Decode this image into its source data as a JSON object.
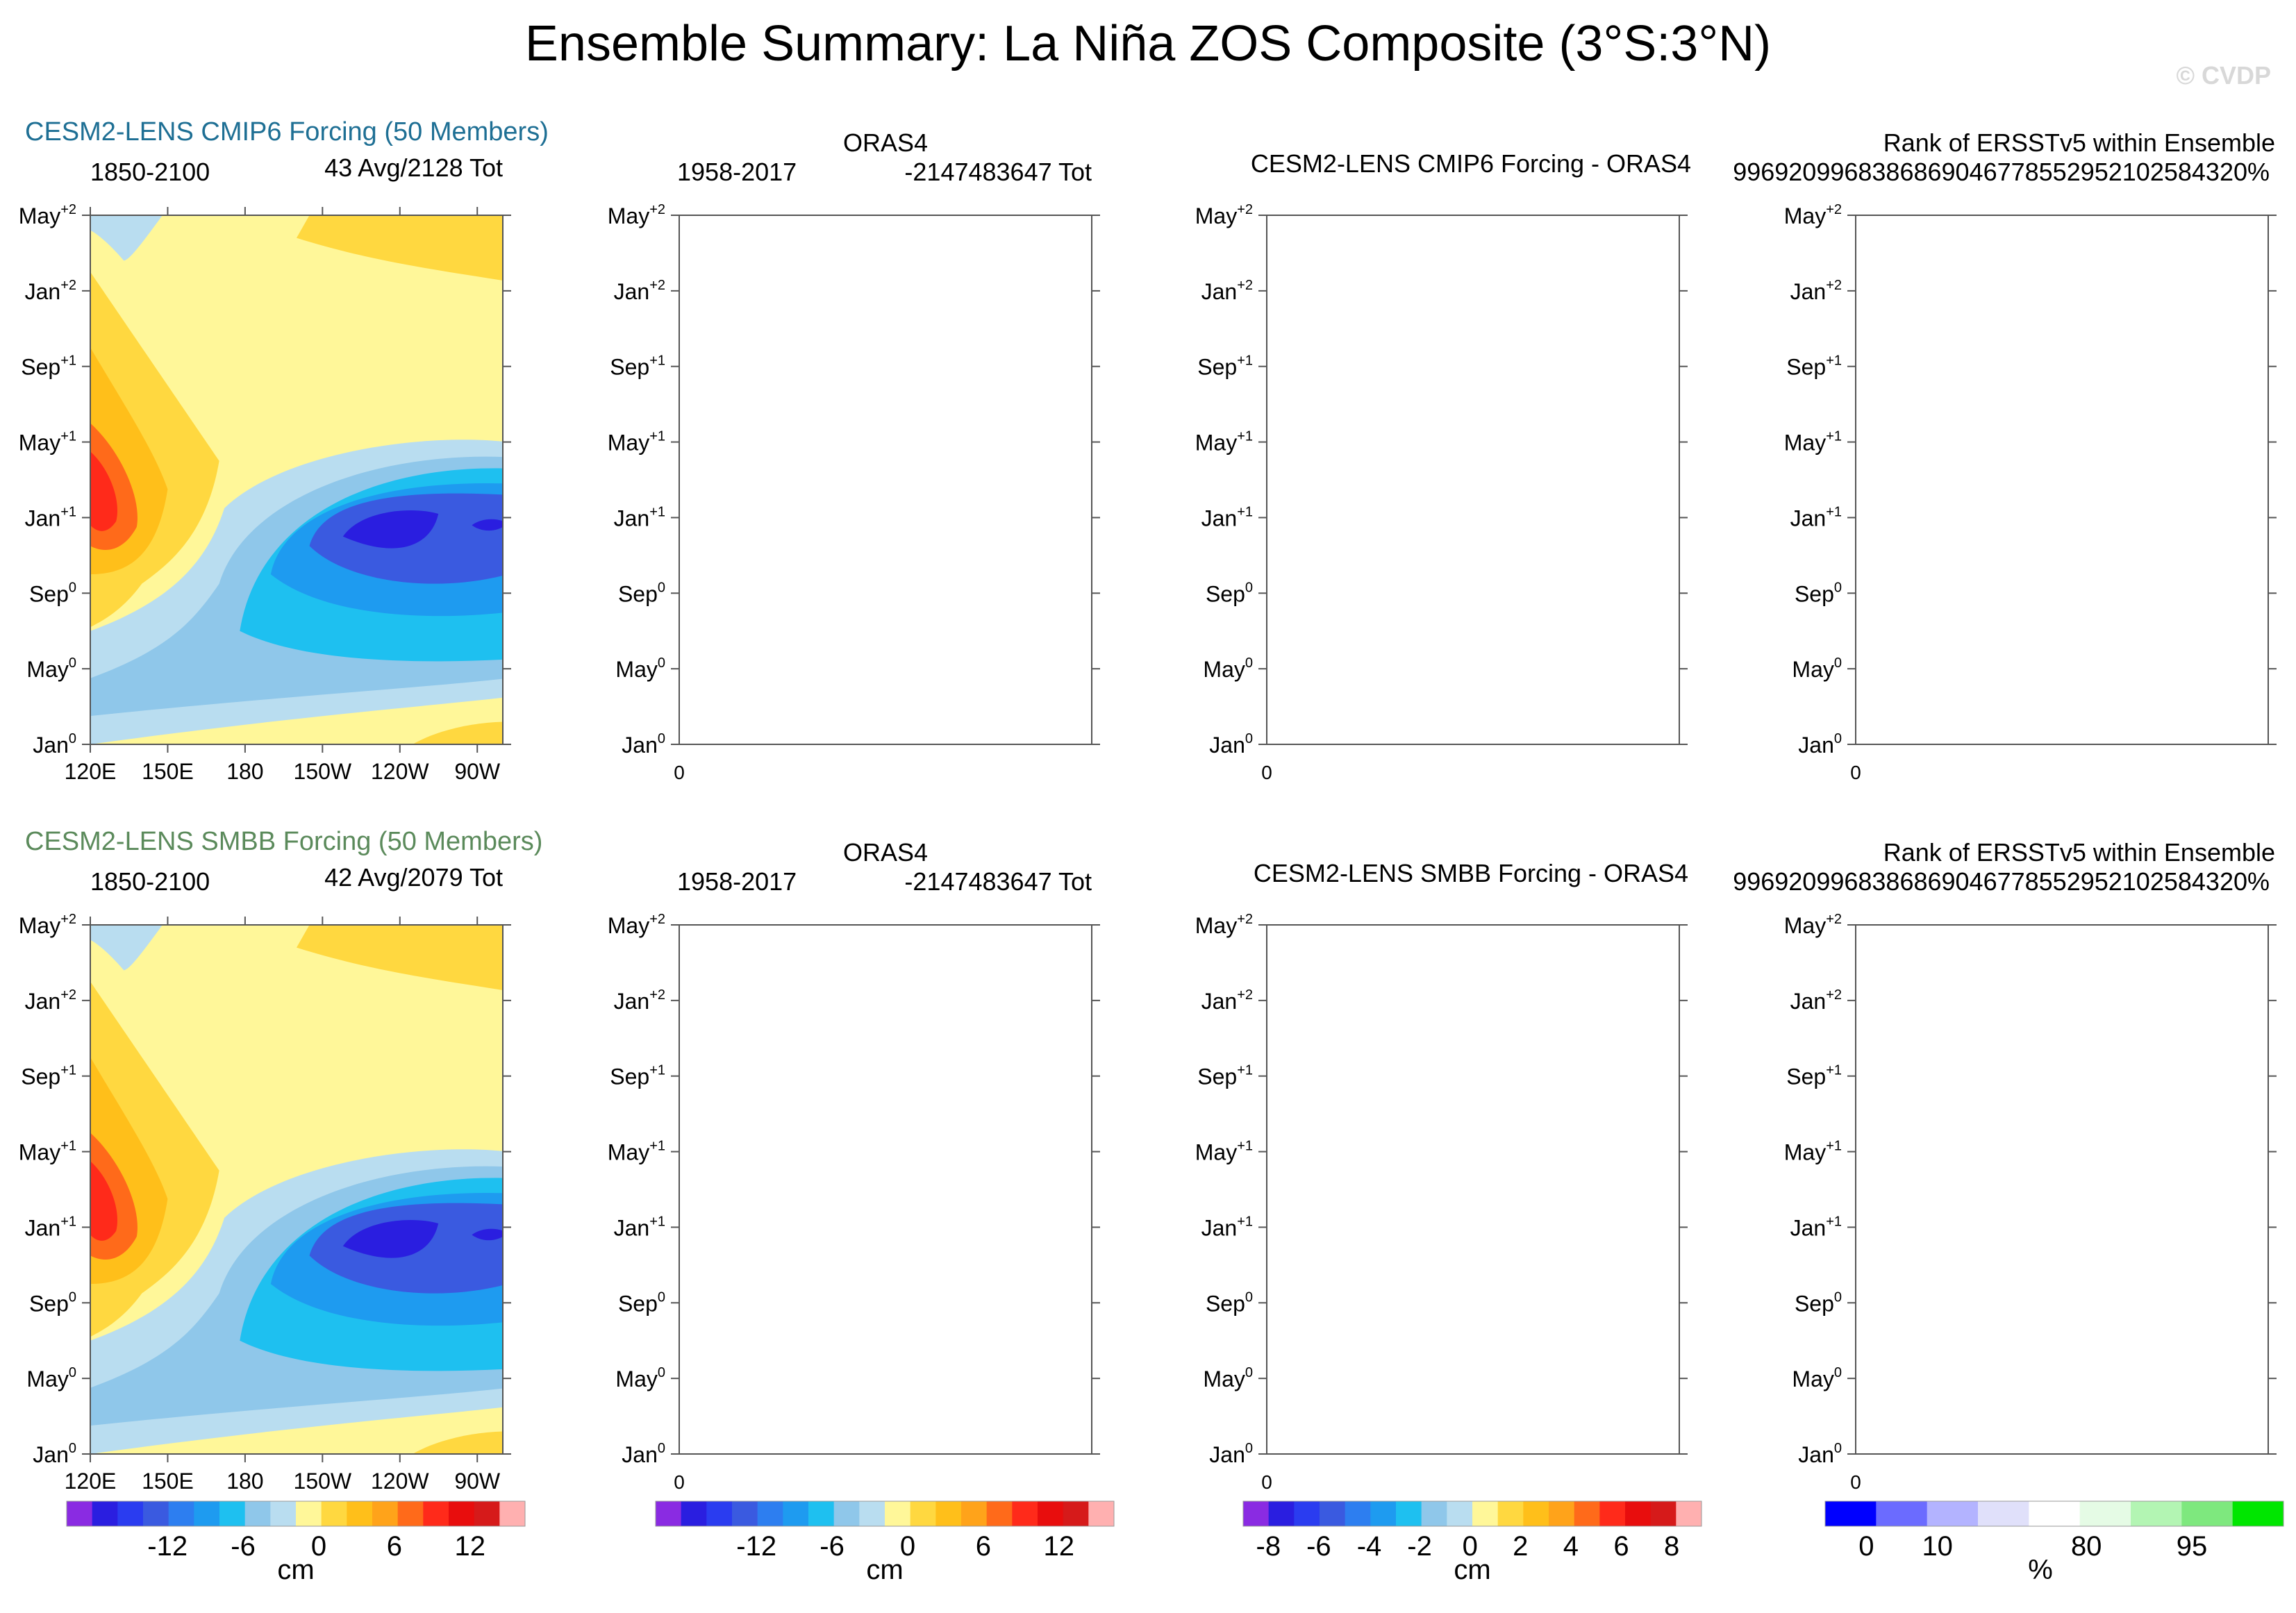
{
  "figure": {
    "title": "Ensemble Summary: La Niña ZOS Composite (3°S:3°N)",
    "watermark": "© CVDP"
  },
  "colors": {
    "cesm_cmip6": "#1e6f94",
    "cesm_smbb": "#5b8a5b",
    "axis": "#555555",
    "zos_levels": [
      "#8a2be2",
      "#2a1ee0",
      "#2a3cf0",
      "#3a5ae0",
      "#2d7ef0",
      "#1e9bf0",
      "#1ec0f0",
      "#8fc7ea",
      "#b9ddf0",
      "#fff799",
      "#ffd840",
      "#ffbf1a",
      "#ffa31a",
      "#ff6a1a",
      "#ff2a1a",
      "#e80d0d",
      "#d61a1a",
      "#ffb0b0"
    ],
    "rank_levels": [
      "#0000ff",
      "#6b6bff",
      "#b3b3ff",
      "#e0e0fa",
      "#ffffff",
      "#e5fbe5",
      "#b3f5b3",
      "#7ee87e",
      "#00e600"
    ]
  },
  "rows": [
    {
      "model_title": "CESM2-LENS CMIP6 Forcing (50 Members)",
      "model_years": "1850-2100",
      "model_count": "43 Avg/2128 Tot",
      "obs_title": "ORAS4",
      "obs_years": "1958-2017",
      "obs_count": "-2147483647 Tot",
      "diff_title": "CESM2-LENS CMIP6 Forcing - ORAS4",
      "rank_title": "Rank of ERSSTv5 within Ensemble",
      "rank_value": "9969209968386869046778552952102584320%"
    },
    {
      "model_title": "CESM2-LENS SMBB Forcing (50 Members)",
      "model_years": "1850-2100",
      "model_count": "42 Avg/2079 Tot",
      "obs_title": "ORAS4",
      "obs_years": "1958-2017",
      "obs_count": "-2147483647 Tot",
      "diff_title": "CESM2-LENS SMBB Forcing - ORAS4",
      "rank_title": "Rank of ERSSTv5 within Ensemble",
      "rank_value": "9969209968386869046778552952102584320%"
    }
  ],
  "chart_data": [
    {
      "type": "heatmap",
      "name": "CESM2-LENS CMIP6 Forcing ZOS composite",
      "xlabels": [
        "120E",
        "150E",
        "180",
        "150W",
        "120W",
        "90W"
      ],
      "x_values": [
        120,
        150,
        180,
        210,
        240,
        270
      ],
      "ylabels": [
        "Jan0",
        "May0",
        "Sep0",
        "Jan+1",
        "May+1",
        "Sep+1",
        "Jan+2",
        "May+2"
      ],
      "y_months": [
        0,
        4,
        8,
        12,
        16,
        20,
        24,
        28
      ],
      "xlim": [
        120,
        280
      ],
      "ylim": [
        0,
        28
      ],
      "features": [
        {
          "type": "max",
          "lon": 135,
          "month": 13,
          "value_cm": 11
        },
        {
          "type": "min",
          "lon": 240,
          "month": 10.5,
          "value_cm": -14
        },
        {
          "type": "min",
          "lon": 275,
          "month": 11,
          "value_cm": -14
        }
      ]
    },
    {
      "type": "heatmap",
      "name": "ORAS4 (no data)",
      "x_tick": "0",
      "ylabels": [
        "Jan0",
        "May0",
        "Sep0",
        "Jan+1",
        "May+1",
        "Sep+1",
        "Jan+2",
        "May+2"
      ]
    },
    {
      "type": "heatmap",
      "name": "CESM2-LENS CMIP6 Forcing - ORAS4 (no data)",
      "x_tick": "0",
      "ylabels": [
        "Jan0",
        "May0",
        "Sep0",
        "Jan+1",
        "May+1",
        "Sep+1",
        "Jan+2",
        "May+2"
      ]
    },
    {
      "type": "heatmap",
      "name": "Rank of ERSSTv5 within Ensemble (no data)",
      "x_tick": "0",
      "ylabels": [
        "Jan0",
        "May0",
        "Sep0",
        "Jan+1",
        "May+1",
        "Sep+1",
        "Jan+2",
        "May+2"
      ]
    },
    {
      "type": "heatmap",
      "name": "CESM2-LENS SMBB Forcing ZOS composite",
      "xlabels": [
        "120E",
        "150E",
        "180",
        "150W",
        "120W",
        "90W"
      ],
      "x_values": [
        120,
        150,
        180,
        210,
        240,
        270
      ],
      "ylabels": [
        "Jan0",
        "May0",
        "Sep0",
        "Jan+1",
        "May+1",
        "Sep+1",
        "Jan+2",
        "May+2"
      ],
      "y_months": [
        0,
        4,
        8,
        12,
        16,
        20,
        24,
        28
      ],
      "xlim": [
        120,
        280
      ],
      "ylim": [
        0,
        28
      ],
      "features": [
        {
          "type": "max",
          "lon": 135,
          "month": 13,
          "value_cm": 11
        },
        {
          "type": "min",
          "lon": 240,
          "month": 10.5,
          "value_cm": -14
        },
        {
          "type": "min",
          "lon": 275,
          "month": 11,
          "value_cm": -14
        }
      ]
    },
    {
      "type": "heatmap",
      "name": "ORAS4 (no data)",
      "x_tick": "0",
      "ylabels": [
        "Jan0",
        "May0",
        "Sep0",
        "Jan+1",
        "May+1",
        "Sep+1",
        "Jan+2",
        "May+2"
      ]
    },
    {
      "type": "heatmap",
      "name": "CESM2-LENS SMBB Forcing - ORAS4 (no data)",
      "x_tick": "0",
      "ylabels": [
        "Jan0",
        "May0",
        "Sep0",
        "Jan+1",
        "May+1",
        "Sep+1",
        "Jan+2",
        "May+2"
      ]
    },
    {
      "type": "heatmap",
      "name": "Rank of ERSSTv5 within Ensemble (no data)",
      "x_tick": "0",
      "ylabels": [
        "Jan0",
        "May0",
        "Sep0",
        "Jan+1",
        "May+1",
        "Sep+1",
        "Jan+2",
        "May+2"
      ]
    }
  ],
  "colorbars": [
    {
      "labels": [
        "-12",
        "-6",
        "0",
        "6",
        "12"
      ],
      "unit": "cm"
    },
    {
      "labels": [
        "-12",
        "-6",
        "0",
        "6",
        "12"
      ],
      "unit": "cm"
    },
    {
      "labels": [
        "-8",
        "-6",
        "-4",
        "-2",
        "0",
        "2",
        "4",
        "6",
        "8"
      ],
      "unit": "cm"
    },
    {
      "labels": [
        "0",
        "10",
        "80",
        "95"
      ],
      "unit": "%"
    }
  ]
}
